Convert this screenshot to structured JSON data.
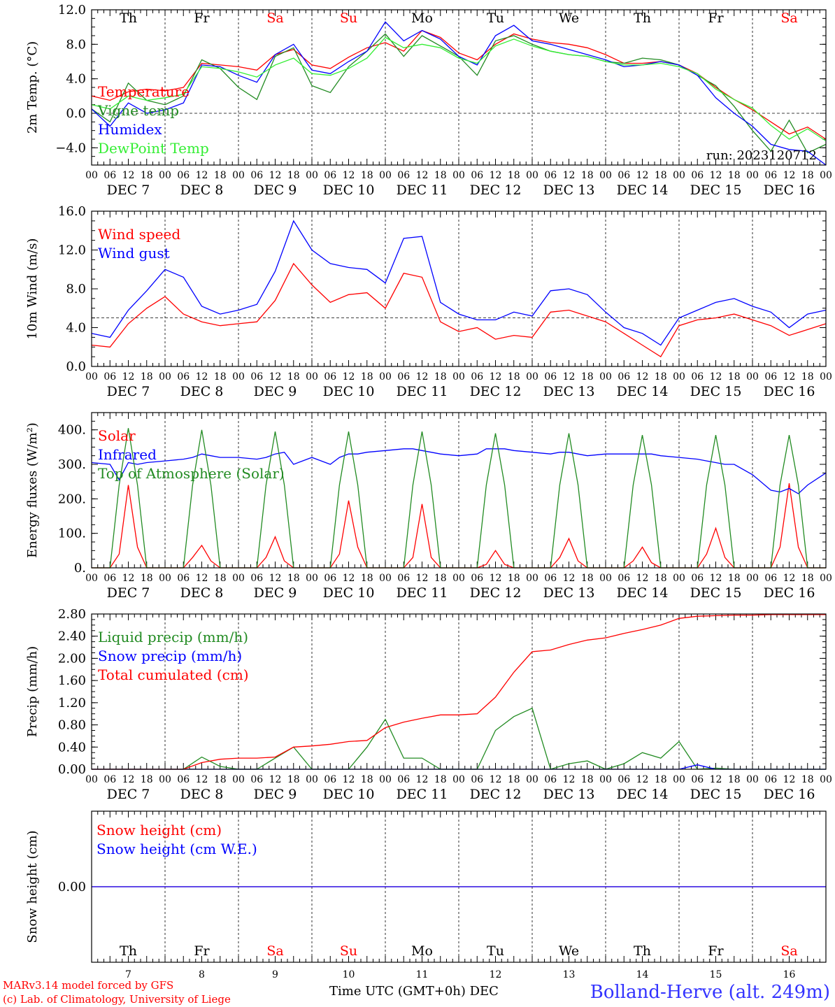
{
  "meta": {
    "run": "run: 2023120712",
    "credit_line1": "MARv3.14 model forced by GFS",
    "credit_line2": "(c) Lab. of Climatology, University of Liege",
    "xlabel": "Time UTC (GMT+0h) DEC",
    "station": "Bolland-Herve (alt. 249m)"
  },
  "axis": {
    "day_names": [
      "Th",
      "Fr",
      "Sa",
      "Su",
      "Mo",
      "Tu",
      "We",
      "Th",
      "Fr",
      "Sa"
    ],
    "weekend_flags": [
      false,
      false,
      true,
      true,
      false,
      false,
      false,
      false,
      false,
      true
    ],
    "date_labels": [
      "DEC  7",
      "DEC  8",
      "DEC  9",
      "DEC 10",
      "DEC 11",
      "DEC 12",
      "DEC 13",
      "DEC 14",
      "DEC 15",
      "DEC 16"
    ],
    "day_numbers": [
      "7",
      "8",
      "9",
      "10",
      "11",
      "12",
      "13",
      "14",
      "15",
      "16"
    ],
    "hour_labels": [
      "00",
      "06",
      "12",
      "18"
    ],
    "end_hour_label": "00",
    "x_range_hours": [
      0,
      240
    ]
  },
  "colors": {
    "red": "#ff0000",
    "darkgreen": "#228b22",
    "blue": "#0000ff",
    "lightgreen": "#33ee33",
    "purple": "#8a2be2",
    "weekend": "#ff0000",
    "text": "#000000",
    "station": "#3333ff"
  },
  "chart_data": [
    {
      "type": "line",
      "ylabel": "2m Temp. (°C)",
      "ylim": [
        -6.0,
        12.0
      ],
      "yticks": [
        -4.0,
        0.0,
        4.0,
        8.0,
        12.0
      ],
      "ytick_labels": [
        "−4.0",
        "0.0",
        "4.0",
        "8.0",
        "12.0"
      ],
      "refline": 0.0,
      "x_hours": [
        0,
        6,
        12,
        18,
        24,
        30,
        36,
        42,
        48,
        54,
        60,
        66,
        72,
        78,
        84,
        90,
        96,
        102,
        108,
        114,
        120,
        126,
        132,
        138,
        144,
        150,
        156,
        162,
        168,
        174,
        180,
        186,
        192,
        198,
        204,
        210,
        216,
        222,
        228,
        234,
        240
      ],
      "series": [
        {
          "name": "Temperature",
          "color": "red",
          "values": [
            2.0,
            1.5,
            2.5,
            2.8,
            2.6,
            3.0,
            5.8,
            5.6,
            5.4,
            5.0,
            6.8,
            7.4,
            5.6,
            5.2,
            6.5,
            7.6,
            8.2,
            7.2,
            9.6,
            8.8,
            7.0,
            6.2,
            8.0,
            9.2,
            8.6,
            8.2,
            8.0,
            7.6,
            6.8,
            5.8,
            5.8,
            6.0,
            5.6,
            4.6,
            3.0,
            1.6,
            0.4,
            -1.0,
            -2.4,
            -1.6,
            -3.0
          ]
        },
        {
          "name": "Vigne temp",
          "color": "darkgreen",
          "values": [
            0.5,
            -1.0,
            3.5,
            1.5,
            1.0,
            2.0,
            6.2,
            5.2,
            3.0,
            1.6,
            6.6,
            7.6,
            3.2,
            2.4,
            5.4,
            7.2,
            9.2,
            6.6,
            9.0,
            7.8,
            6.6,
            4.4,
            8.4,
            9.0,
            8.0,
            7.2,
            6.8,
            6.6,
            6.0,
            5.8,
            6.4,
            6.2,
            5.6,
            4.4,
            3.2,
            0.8,
            -2.0,
            -4.4,
            -0.8,
            -4.6,
            -3.6
          ]
        },
        {
          "name": "Humidex",
          "color": "blue",
          "values": [
            0.5,
            -1.5,
            1.2,
            0.0,
            0.4,
            1.2,
            5.6,
            5.4,
            4.4,
            3.6,
            6.8,
            8.0,
            5.0,
            4.6,
            6.0,
            7.2,
            10.6,
            8.4,
            9.6,
            8.6,
            6.6,
            5.6,
            9.0,
            10.2,
            8.4,
            8.0,
            7.4,
            6.8,
            6.2,
            5.4,
            5.6,
            6.0,
            5.6,
            4.4,
            1.8,
            0.0,
            -1.5,
            -3.6,
            -4.2,
            -4.4,
            -6.0
          ]
        },
        {
          "name": "DewPoint Temp",
          "color": "lightgreen",
          "values": [
            1.0,
            0.5,
            2.0,
            1.5,
            1.8,
            2.2,
            5.4,
            5.2,
            4.8,
            4.2,
            5.6,
            6.4,
            4.6,
            4.4,
            5.2,
            6.4,
            8.8,
            7.6,
            8.0,
            7.6,
            6.4,
            5.8,
            7.8,
            8.6,
            7.8,
            7.2,
            6.8,
            6.6,
            6.0,
            5.6,
            5.6,
            5.8,
            5.4,
            4.6,
            2.8,
            1.6,
            0.6,
            -1.4,
            -3.0,
            -1.8,
            -3.2
          ]
        }
      ]
    },
    {
      "type": "line",
      "ylabel": "10m Wind (m/s)",
      "ylim": [
        0.0,
        16.0
      ],
      "yticks": [
        0.0,
        4.0,
        8.0,
        12.0,
        16.0
      ],
      "ytick_labels": [
        "0.0",
        "4.0",
        "8.0",
        "12.0",
        "16.0"
      ],
      "refline": 5.0,
      "x_hours": [
        0,
        6,
        12,
        18,
        24,
        30,
        36,
        42,
        48,
        54,
        60,
        66,
        72,
        78,
        84,
        90,
        96,
        102,
        108,
        114,
        120,
        126,
        132,
        138,
        144,
        150,
        156,
        162,
        168,
        174,
        180,
        186,
        192,
        198,
        204,
        210,
        216,
        222,
        228,
        234,
        240
      ],
      "series": [
        {
          "name": "Wind speed",
          "color": "red",
          "values": [
            2.2,
            2.0,
            4.4,
            6.0,
            7.2,
            5.4,
            4.6,
            4.2,
            4.4,
            4.6,
            6.8,
            10.6,
            8.4,
            6.6,
            7.4,
            7.6,
            6.0,
            9.6,
            9.2,
            4.6,
            3.6,
            4.0,
            2.8,
            3.2,
            3.0,
            5.6,
            5.8,
            5.2,
            4.6,
            3.4,
            2.2,
            1.0,
            4.2,
            4.8,
            5.0,
            5.4,
            4.8,
            4.2,
            3.2,
            3.8,
            4.4
          ]
        },
        {
          "name": "Wind gust",
          "color": "blue",
          "values": [
            3.4,
            3.0,
            5.8,
            7.8,
            10.0,
            9.2,
            6.2,
            5.4,
            5.8,
            6.4,
            9.8,
            15.0,
            12.0,
            10.6,
            10.2,
            10.0,
            8.6,
            13.2,
            13.4,
            6.6,
            5.4,
            4.8,
            4.8,
            5.6,
            5.2,
            7.8,
            8.0,
            7.4,
            5.6,
            4.0,
            3.4,
            2.2,
            5.0,
            5.8,
            6.6,
            7.0,
            6.2,
            5.6,
            4.0,
            5.4,
            5.8
          ]
        }
      ]
    },
    {
      "type": "line",
      "ylabel": "Energy fluxes (W/m²)",
      "ylim": [
        0,
        450
      ],
      "yticks": [
        0,
        100,
        200,
        300,
        400
      ],
      "ytick_labels": [
        "0.",
        "100.",
        "200.",
        "300.",
        "400."
      ],
      "x_hours": [
        0,
        6,
        9,
        12,
        15,
        18,
        24,
        30,
        33,
        36,
        39,
        42,
        48,
        54,
        57,
        60,
        63,
        66,
        72,
        78,
        81,
        84,
        87,
        90,
        96,
        102,
        105,
        108,
        111,
        114,
        120,
        126,
        129,
        132,
        135,
        138,
        144,
        150,
        153,
        156,
        159,
        162,
        168,
        174,
        177,
        180,
        183,
        186,
        192,
        198,
        201,
        204,
        207,
        210,
        216,
        222,
        225,
        228,
        231,
        234,
        240
      ],
      "series": [
        {
          "name": "Solar",
          "color": "red",
          "values": [
            0,
            0,
            40,
            240,
            60,
            0,
            0,
            0,
            30,
            65,
            20,
            0,
            0,
            0,
            30,
            90,
            20,
            0,
            0,
            0,
            40,
            195,
            60,
            0,
            0,
            0,
            30,
            185,
            30,
            0,
            0,
            0,
            10,
            50,
            10,
            0,
            0,
            0,
            30,
            85,
            20,
            0,
            0,
            0,
            20,
            60,
            15,
            0,
            0,
            0,
            40,
            115,
            30,
            0,
            0,
            0,
            60,
            245,
            60,
            0,
            0
          ]
        },
        {
          "name": "Infrared",
          "color": "blue",
          "values": [
            305,
            300,
            255,
            305,
            300,
            305,
            310,
            315,
            320,
            330,
            325,
            320,
            320,
            315,
            320,
            330,
            335,
            300,
            320,
            300,
            320,
            330,
            330,
            335,
            340,
            345,
            345,
            340,
            335,
            330,
            325,
            330,
            345,
            345,
            345,
            340,
            335,
            330,
            335,
            335,
            330,
            325,
            330,
            330,
            330,
            330,
            330,
            325,
            320,
            315,
            310,
            305,
            300,
            300,
            270,
            225,
            220,
            230,
            215,
            240,
            275
          ]
        },
        {
          "name": "Top of Atmosphere (Solar)",
          "color": "darkgreen",
          "values": [
            0,
            0,
            240,
            405,
            240,
            0,
            0,
            0,
            240,
            400,
            240,
            0,
            0,
            0,
            240,
            395,
            240,
            0,
            0,
            0,
            240,
            395,
            240,
            0,
            0,
            0,
            240,
            395,
            240,
            0,
            0,
            0,
            240,
            390,
            240,
            0,
            0,
            0,
            240,
            390,
            240,
            0,
            0,
            0,
            240,
            385,
            240,
            0,
            0,
            0,
            240,
            385,
            240,
            0,
            0,
            0,
            240,
            385,
            240,
            0,
            0
          ]
        }
      ]
    },
    {
      "type": "line",
      "ylabel": "Precip (mm/h)",
      "ylim": [
        0.0,
        2.8
      ],
      "yticks": [
        0.0,
        0.4,
        0.8,
        1.2,
        1.6,
        2.0,
        2.4,
        2.8
      ],
      "ytick_labels": [
        "0.00",
        "0.40",
        "0.80",
        "1.20",
        "1.60",
        "2.00",
        "2.40",
        "2.80"
      ],
      "x_hours": [
        0,
        6,
        12,
        18,
        24,
        30,
        36,
        42,
        48,
        54,
        60,
        66,
        72,
        78,
        84,
        90,
        96,
        102,
        108,
        114,
        120,
        126,
        132,
        138,
        144,
        150,
        156,
        162,
        168,
        174,
        180,
        186,
        192,
        198,
        204,
        210,
        216,
        222,
        228,
        234,
        240
      ],
      "series": [
        {
          "name": "Liquid precip (mm/h)",
          "color": "darkgreen",
          "values": [
            0.0,
            0.0,
            0.0,
            0.0,
            0.0,
            0.0,
            0.22,
            0.05,
            0.0,
            0.0,
            0.2,
            0.4,
            0.0,
            0.0,
            0.0,
            0.4,
            0.9,
            0.2,
            0.2,
            0.0,
            0.0,
            0.0,
            0.7,
            0.95,
            1.1,
            0.0,
            0.1,
            0.15,
            0.0,
            0.1,
            0.3,
            0.2,
            0.5,
            0.0,
            0.02,
            0.0,
            0.0,
            0.0,
            0.0,
            0.0,
            0.0
          ]
        },
        {
          "name": "Snow precip (mm/h)",
          "color": "blue",
          "values": [
            0.0,
            0.0,
            0.0,
            0.0,
            0.0,
            0.0,
            0.0,
            0.0,
            0.0,
            0.0,
            0.0,
            0.0,
            0.0,
            0.0,
            0.0,
            0.0,
            0.0,
            0.0,
            0.0,
            0.0,
            0.0,
            0.0,
            0.0,
            0.0,
            0.0,
            0.0,
            0.0,
            0.0,
            0.0,
            0.0,
            0.0,
            0.0,
            0.0,
            0.08,
            0.0,
            0.0,
            0.0,
            0.0,
            0.0,
            0.0,
            0.0
          ]
        },
        {
          "name": "Total cumulated (cm)",
          "color": "red",
          "values": [
            0.0,
            0.0,
            0.0,
            0.0,
            0.0,
            0.0,
            0.12,
            0.18,
            0.2,
            0.2,
            0.22,
            0.4,
            0.42,
            0.45,
            0.5,
            0.52,
            0.75,
            0.85,
            0.92,
            0.98,
            0.98,
            1.0,
            1.3,
            1.75,
            2.12,
            2.15,
            2.25,
            2.33,
            2.37,
            2.45,
            2.52,
            2.6,
            2.72,
            2.76,
            2.77,
            2.78,
            2.78,
            2.79,
            2.79,
            2.79,
            2.79
          ]
        }
      ]
    },
    {
      "type": "line",
      "ylabel": "Snow height (cm)",
      "ylim": [
        -1.0,
        1.0
      ],
      "yticks": [
        0.0
      ],
      "ytick_labels": [
        "0.00"
      ],
      "x_hours": [
        0,
        240
      ],
      "series": [
        {
          "name": "Snow height (cm)",
          "color": "red",
          "values": [
            0.0,
            0.0
          ]
        },
        {
          "name": "Snow height (cm W.E.)",
          "color": "blue",
          "values": [
            0.0,
            0.0
          ]
        }
      ]
    }
  ]
}
